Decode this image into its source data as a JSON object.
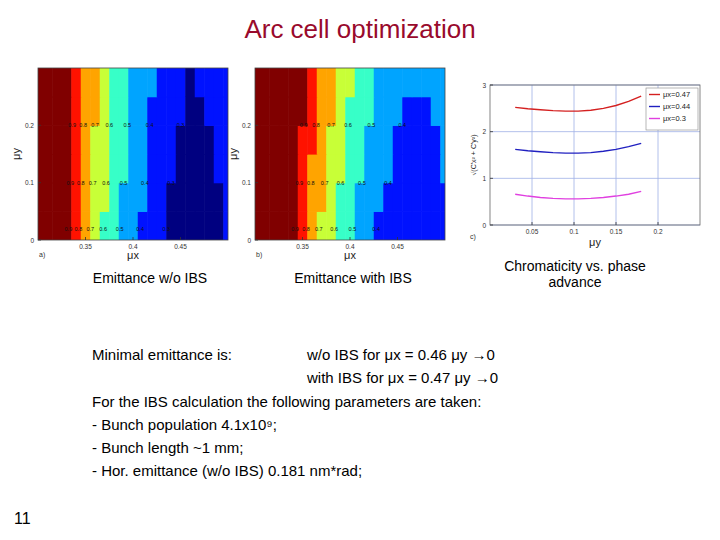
{
  "slide": {
    "title": "Arc cell optimization",
    "captions": [
      "Emittance w/o IBS",
      "Emittance with IBS",
      "Chromaticity vs. phase advance"
    ],
    "minimal_label": "Minimal emittance is:",
    "minimal_lines": [
      "w/o IBS for μx = 0.46 μy →0",
      "with IBS for μx = 0.47 μy →0"
    ],
    "params_intro": "For the IBS calculation the following parameters are taken:",
    "params": [
      "- Bunch population 4.1x10⁹;",
      "- Bunch length ~1 mm;",
      "- Hor. emittance (w/o IBS) 0.181 nm*rad;"
    ],
    "page": "11"
  },
  "chart_data": [
    {
      "type": "heatmap",
      "panel": "a)",
      "xlabel": "μx",
      "ylabel": "μy",
      "x": [
        0.3,
        0.31,
        0.32,
        0.33,
        0.34,
        0.35,
        0.36,
        0.37,
        0.38,
        0.39,
        0.4,
        0.41,
        0.42,
        0.43,
        0.44,
        0.45,
        0.46,
        0.47,
        0.48,
        0.49,
        0.5
      ],
      "y": [
        0.025,
        0.075,
        0.125,
        0.175,
        0.225,
        0.275
      ],
      "values": [
        [
          1.4,
          1.2,
          1.05,
          0.92,
          0.82,
          0.74,
          0.66,
          0.59,
          0.53,
          0.48,
          0.43,
          0.39,
          0.35,
          0.32,
          0.28,
          0.26,
          0.24,
          0.25,
          0.26,
          0.28,
          0.31
        ],
        [
          1.41,
          1.21,
          1.06,
          0.93,
          0.83,
          0.75,
          0.67,
          0.6,
          0.54,
          0.49,
          0.44,
          0.4,
          0.36,
          0.33,
          0.29,
          0.27,
          0.25,
          0.26,
          0.27,
          0.29,
          0.32
        ],
        [
          1.42,
          1.22,
          1.07,
          0.94,
          0.84,
          0.76,
          0.68,
          0.61,
          0.55,
          0.5,
          0.45,
          0.41,
          0.37,
          0.34,
          0.3,
          0.28,
          0.26,
          0.27,
          0.28,
          0.3,
          0.33
        ],
        [
          1.43,
          1.23,
          1.08,
          0.95,
          0.85,
          0.77,
          0.69,
          0.62,
          0.56,
          0.51,
          0.46,
          0.42,
          0.38,
          0.35,
          0.31,
          0.29,
          0.27,
          0.28,
          0.29,
          0.31,
          0.34
        ],
        [
          1.44,
          1.24,
          1.09,
          0.96,
          0.86,
          0.78,
          0.7,
          0.63,
          0.57,
          0.52,
          0.47,
          0.43,
          0.39,
          0.36,
          0.32,
          0.3,
          0.28,
          0.29,
          0.3,
          0.32,
          0.35
        ],
        [
          1.45,
          1.25,
          1.1,
          0.97,
          0.87,
          0.79,
          0.71,
          0.64,
          0.58,
          0.53,
          0.48,
          0.44,
          0.4,
          0.37,
          0.33,
          0.31,
          0.29,
          0.3,
          0.31,
          0.33,
          0.36
        ]
      ],
      "xlim": [
        0.3,
        0.5
      ],
      "ylim": [
        0,
        0.3
      ],
      "xticks": [
        0.35,
        0.4,
        0.45
      ],
      "yticks": [
        0,
        0.1,
        0.2
      ],
      "contour_levels": [
        0.9,
        0.8,
        0.7,
        0.6,
        0.5,
        0.4,
        0.3
      ],
      "contour_label_y": [
        0.02,
        0.1,
        0.2
      ]
    },
    {
      "type": "heatmap",
      "panel": "b)",
      "xlabel": "μx",
      "ylabel": "μy",
      "x": [
        0.3,
        0.31,
        0.32,
        0.33,
        0.34,
        0.35,
        0.36,
        0.37,
        0.38,
        0.39,
        0.4,
        0.41,
        0.42,
        0.43,
        0.44,
        0.45,
        0.46,
        0.47,
        0.48,
        0.49,
        0.5
      ],
      "y": [
        0.025,
        0.075,
        0.125,
        0.175,
        0.225,
        0.275
      ],
      "values": [
        [
          1.55,
          1.34,
          1.17,
          1.03,
          0.92,
          0.83,
          0.75,
          0.68,
          0.62,
          0.56,
          0.51,
          0.47,
          0.43,
          0.39,
          0.36,
          0.33,
          0.31,
          0.3,
          0.31,
          0.33,
          0.36
        ],
        [
          1.57,
          1.36,
          1.19,
          1.05,
          0.94,
          0.85,
          0.77,
          0.7,
          0.64,
          0.58,
          0.53,
          0.49,
          0.45,
          0.41,
          0.38,
          0.35,
          0.33,
          0.32,
          0.33,
          0.35,
          0.38
        ],
        [
          1.59,
          1.38,
          1.21,
          1.07,
          0.96,
          0.87,
          0.79,
          0.72,
          0.66,
          0.6,
          0.55,
          0.51,
          0.47,
          0.43,
          0.4,
          0.37,
          0.35,
          0.34,
          0.35,
          0.37,
          0.4
        ],
        [
          1.61,
          1.4,
          1.23,
          1.09,
          0.98,
          0.89,
          0.81,
          0.74,
          0.68,
          0.62,
          0.57,
          0.53,
          0.49,
          0.45,
          0.42,
          0.39,
          0.37,
          0.36,
          0.37,
          0.39,
          0.42
        ],
        [
          1.63,
          1.42,
          1.25,
          1.11,
          1.0,
          0.91,
          0.83,
          0.76,
          0.7,
          0.64,
          0.59,
          0.55,
          0.51,
          0.47,
          0.44,
          0.41,
          0.39,
          0.38,
          0.39,
          0.41,
          0.44
        ],
        [
          1.65,
          1.44,
          1.27,
          1.13,
          1.02,
          0.93,
          0.85,
          0.78,
          0.72,
          0.66,
          0.61,
          0.57,
          0.53,
          0.49,
          0.46,
          0.43,
          0.41,
          0.4,
          0.41,
          0.43,
          0.46
        ]
      ],
      "xlim": [
        0.3,
        0.5
      ],
      "ylim": [
        0,
        0.3
      ],
      "xticks": [
        0.35,
        0.4,
        0.45
      ],
      "yticks": [
        0,
        0.1,
        0.2
      ],
      "contour_levels": [
        0.9,
        0.8,
        0.7,
        0.6,
        0.5,
        0.4,
        0.3
      ],
      "contour_label_y": [
        0.02,
        0.1,
        0.2
      ]
    },
    {
      "type": "line",
      "panel": "c)",
      "xlabel": "μy",
      "ylabel": "√(C'x² + C'y²)",
      "x": [
        0.03,
        0.045,
        0.06,
        0.075,
        0.09,
        0.105,
        0.12,
        0.135,
        0.15,
        0.165,
        0.18
      ],
      "series": [
        {
          "name": "μx=0.47",
          "color": "#d42020",
          "values": [
            2.52,
            2.49,
            2.47,
            2.45,
            2.44,
            2.44,
            2.46,
            2.5,
            2.56,
            2.65,
            2.76
          ]
        },
        {
          "name": "μx=0.44",
          "color": "#2020c0",
          "values": [
            1.62,
            1.59,
            1.57,
            1.55,
            1.54,
            1.54,
            1.55,
            1.58,
            1.62,
            1.68,
            1.75
          ]
        },
        {
          "name": "μx=0.3",
          "color": "#e040e0",
          "values": [
            0.66,
            0.62,
            0.59,
            0.57,
            0.56,
            0.56,
            0.57,
            0.59,
            0.62,
            0.66,
            0.72
          ]
        }
      ],
      "xlim": [
        0,
        0.25
      ],
      "ylim": [
        0,
        3
      ],
      "xticks": [
        0.05,
        0.1,
        0.15,
        0.2
      ],
      "yticks": [
        0,
        1,
        2,
        3
      ],
      "grid": true,
      "legend": "upper right"
    }
  ]
}
